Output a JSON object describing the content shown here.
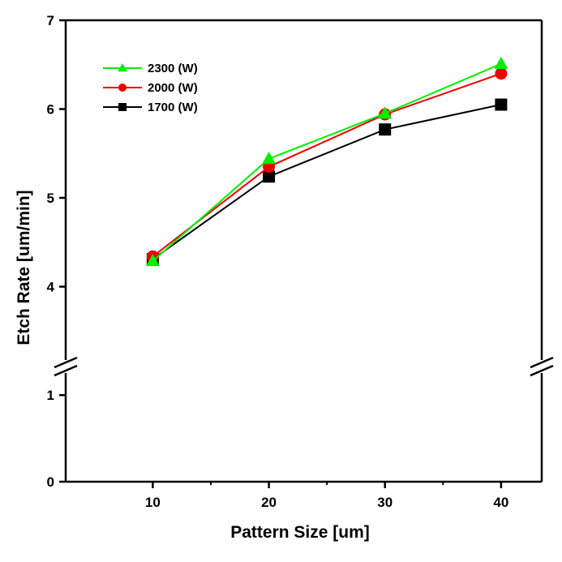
{
  "chart_data": {
    "type": "line",
    "xlabel": "Pattern Size [um]",
    "ylabel": "Etch Rate [um/min]",
    "x": [
      10,
      20,
      30,
      40
    ],
    "x_ticks": [
      "10",
      "20",
      "30",
      "40"
    ],
    "xlim": [
      2.5,
      43.5
    ],
    "y_axis_break": true,
    "y_lower_segment": {
      "range": [
        0,
        1.33
      ],
      "ticks": [
        "0",
        "1"
      ]
    },
    "y_upper_segment": {
      "range": [
        3.1,
        7
      ],
      "ticks": [
        "4",
        "5",
        "6",
        "7"
      ]
    },
    "grid": false,
    "legend_position": "top-left",
    "series": [
      {
        "name": "2300 (W)",
        "color": "#00ee00",
        "marker": "triangle",
        "values": [
          4.29,
          5.44,
          5.95,
          6.51
        ]
      },
      {
        "name": "2000 (W)",
        "color": "#ee0000",
        "marker": "circle",
        "values": [
          4.34,
          5.35,
          5.94,
          6.4
        ]
      },
      {
        "name": "1700 (W)",
        "color": "#000000",
        "marker": "square",
        "values": [
          4.31,
          5.24,
          5.77,
          6.05
        ]
      }
    ]
  }
}
